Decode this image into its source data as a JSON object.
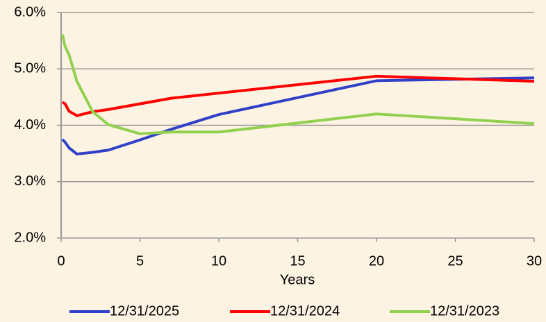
{
  "chart_data": {
    "type": "line",
    "xlabel": "Years",
    "x": [
      0.083,
      0.25,
      0.5,
      1,
      2,
      3,
      5,
      7,
      10,
      20,
      30
    ],
    "series": [
      {
        "name": "12/31/2025",
        "color": "#3040c8",
        "values": [
          3.75,
          3.7,
          3.6,
          3.49,
          3.52,
          3.56,
          3.74,
          3.93,
          4.19,
          4.79,
          4.84
        ]
      },
      {
        "name": "12/31/2024",
        "color": "#ff0000",
        "values": [
          4.41,
          4.38,
          4.25,
          4.17,
          4.24,
          4.28,
          4.38,
          4.48,
          4.57,
          4.87,
          4.78
        ]
      },
      {
        "name": "12/31/2023",
        "color": "#92d050",
        "values": [
          5.61,
          5.4,
          5.25,
          4.78,
          4.24,
          4.01,
          3.85,
          3.88,
          3.88,
          4.2,
          4.03
        ]
      }
    ],
    "xlim": [
      0,
      30
    ],
    "xticks": [
      0,
      5,
      10,
      15,
      20,
      25,
      30
    ],
    "ylim": [
      2,
      6
    ],
    "yticks": [
      {
        "value": 2,
        "label": "2.0%"
      },
      {
        "value": 3,
        "label": "3.0%"
      },
      {
        "value": 4,
        "label": "4.0%"
      },
      {
        "value": 5,
        "label": "5.0%"
      },
      {
        "value": 6,
        "label": "6.0%"
      }
    ],
    "grid": true,
    "legend": "bottom"
  }
}
